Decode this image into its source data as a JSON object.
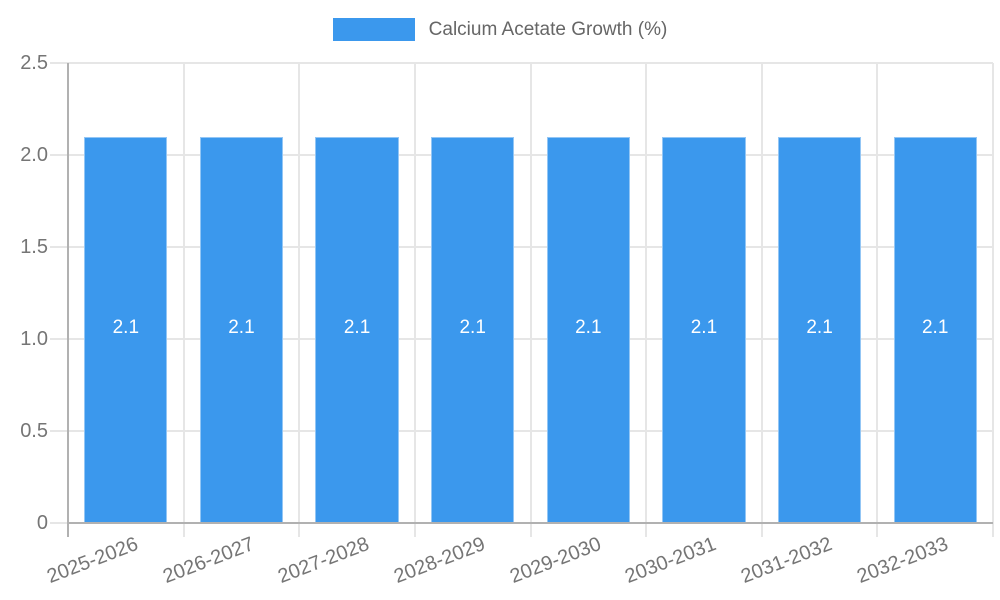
{
  "chart_data": {
    "type": "bar",
    "title": "Calcium Acetate Growth (%)",
    "categories": [
      "2025-2026",
      "2026-2027",
      "2027-2028",
      "2028-2029",
      "2029-2030",
      "2030-2031",
      "2031-2032",
      "2032-2033"
    ],
    "series": [
      {
        "name": "Calcium Acetate Growth (%)",
        "values": [
          2.1,
          2.1,
          2.1,
          2.1,
          2.1,
          2.1,
          2.1,
          2.1
        ],
        "bar_labels": [
          "2.1",
          "2.1",
          "2.1",
          "2.1",
          "2.1",
          "2.1",
          "2.1",
          "2.1"
        ]
      }
    ],
    "xlabel": "",
    "ylabel": "",
    "ylim": [
      0,
      2.5
    ],
    "yticks": [
      0,
      0.5,
      1.0,
      1.5,
      2.0,
      2.5
    ],
    "ytick_labels": [
      "0",
      "0.5",
      "1.0",
      "1.5",
      "2.0",
      "2.5"
    ],
    "legend_position": "top",
    "grid": "on",
    "colors": {
      "bar": "#3B98ED",
      "bar_label_text": "#ffffff",
      "gridline": "#e6e6e6",
      "axis_border": "#b1b1b1",
      "tick_text": "#757575",
      "legend_text": "#666666"
    }
  }
}
